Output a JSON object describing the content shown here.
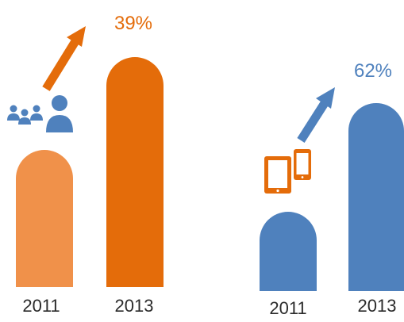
{
  "colors": {
    "orange_light": "#f0914a",
    "orange_dark": "#e46c0a",
    "blue": "#4f81bd",
    "label": "#2b2b2b"
  },
  "icons": {
    "left": "people-group-icon",
    "right": "tablet-phone-icon",
    "arrow": "arrow-up-right-icon"
  },
  "chart_data": [
    {
      "type": "bar",
      "categories": [
        "2011",
        "2013"
      ],
      "growth_label": "39%",
      "bar_colors": [
        "#f0914a",
        "#e46c0a"
      ],
      "growth_color": "#e46c0a"
    },
    {
      "type": "bar",
      "categories": [
        "2011",
        "2013"
      ],
      "growth_label": "62%",
      "bar_colors": [
        "#4f81bd",
        "#4f81bd"
      ],
      "growth_color": "#4f81bd"
    }
  ]
}
